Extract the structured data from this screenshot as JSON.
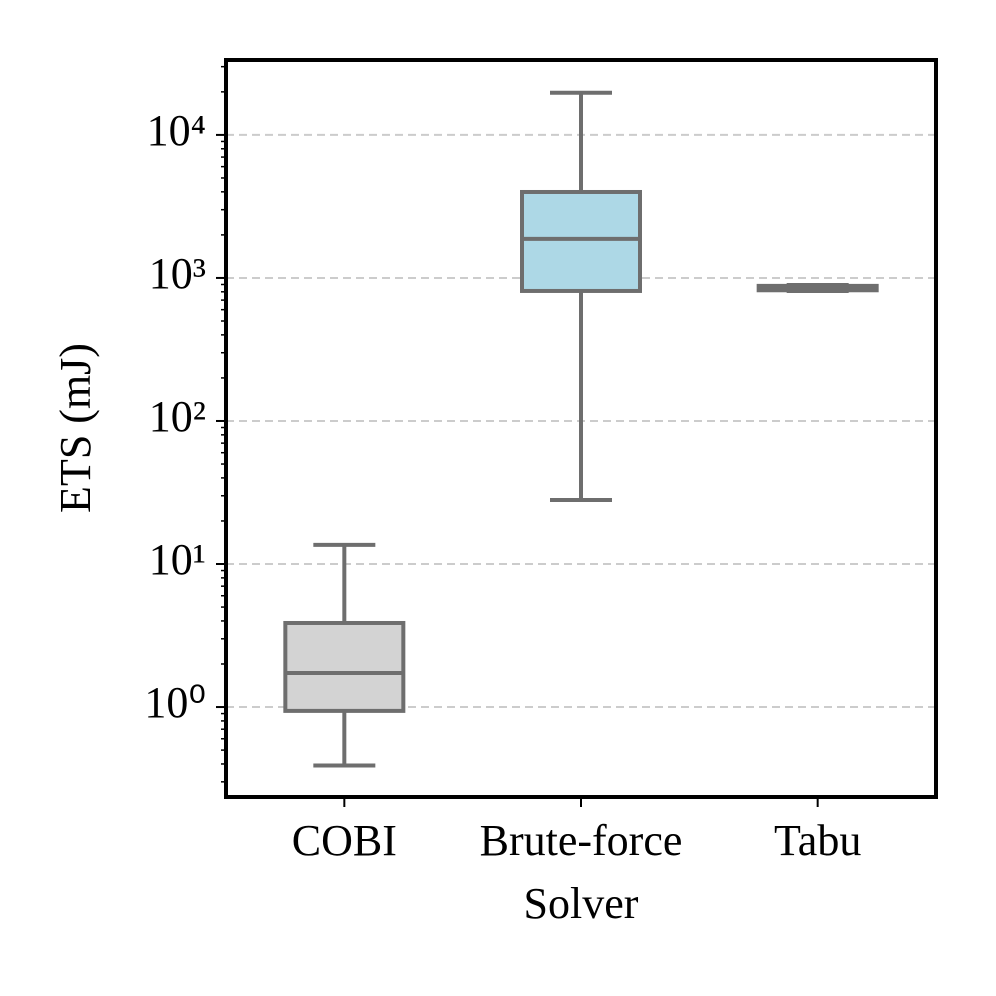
{
  "chart_data": {
    "type": "box",
    "xlabel": "Solver",
    "ylabel": "ETS (mJ)",
    "categories": [
      "COBI",
      "Brute-force",
      "Tabu"
    ],
    "boxes": [
      {
        "whislo": 0.39,
        "q1": 0.94,
        "med": 1.73,
        "q3": 3.87,
        "whishi": 13.6,
        "color": "#d3d3d3"
      },
      {
        "whislo": 28,
        "q1": 811,
        "med": 1875,
        "q3": 3990,
        "whishi": 19700,
        "color": "#add8e6"
      },
      {
        "whislo": 811,
        "q1": 820,
        "med": 852,
        "q3": 880,
        "whishi": 893,
        "color": "#f5deb3"
      }
    ],
    "line_color": "#6e6e6e",
    "ylim": [
      0.235,
      33400
    ],
    "log_y": true,
    "grid": true,
    "yticks": [
      {
        "value": 1,
        "label": "10⁰"
      },
      {
        "value": 10,
        "label": "10¹"
      },
      {
        "value": 100,
        "label": "10²"
      },
      {
        "value": 1000,
        "label": "10³"
      },
      {
        "value": 10000,
        "label": "10⁴"
      }
    ],
    "minor_yticks": [
      0.3,
      0.4,
      0.5,
      0.6,
      0.7,
      0.8,
      0.9,
      2,
      3,
      4,
      5,
      6,
      7,
      8,
      9,
      20,
      30,
      40,
      50,
      60,
      70,
      80,
      90,
      200,
      300,
      400,
      500,
      600,
      700,
      800,
      900,
      2000,
      3000,
      4000,
      5000,
      6000,
      7000,
      8000,
      9000,
      20000,
      30000
    ]
  }
}
